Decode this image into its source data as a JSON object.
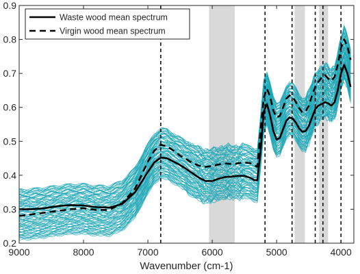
{
  "chart_data": {
    "type": "line",
    "title": "",
    "xlabel": "Wavenumber (cm-1)",
    "ylabel": "",
    "x_reversed": true,
    "xlim": [
      9000,
      3800
    ],
    "ylim": [
      0.2,
      0.9
    ],
    "x_ticks": [
      9000,
      8000,
      7000,
      6000,
      5000,
      4000
    ],
    "x_tick_labels": [
      "9000",
      "8000",
      "7000",
      "6000",
      "5000",
      "4000"
    ],
    "y_ticks": [
      0.2,
      0.3,
      0.4,
      0.5,
      0.6,
      0.7,
      0.8,
      0.9
    ],
    "y_tick_labels": [
      "0.2",
      "0.3",
      "0.4",
      "0.5",
      "0.6",
      "0.7",
      "0.8",
      "0.9"
    ],
    "grid": false,
    "legend_position": "top-left",
    "shaded_regions": [
      [
        6050,
        5650
      ],
      [
        4720,
        4560
      ],
      [
        4340,
        4200
      ]
    ],
    "vertical_dashed_lines": [
      6800,
      5180,
      4760,
      4400,
      4280,
      4000
    ],
    "sample_band": {
      "color": "#1aa7b5",
      "count": 90
    },
    "series": [
      {
        "name": "Waste wood mean spectrum",
        "style": "solid",
        "color": "#000000",
        "x": [
          9000,
          8800,
          8600,
          8400,
          8200,
          8000,
          7800,
          7600,
          7400,
          7200,
          7000,
          6900,
          6800,
          6700,
          6600,
          6500,
          6400,
          6300,
          6200,
          6100,
          6000,
          5900,
          5800,
          5700,
          5600,
          5500,
          5400,
          5350,
          5300,
          5250,
          5200,
          5150,
          5100,
          5050,
          5000,
          4950,
          4900,
          4850,
          4800,
          4750,
          4700,
          4650,
          4600,
          4550,
          4500,
          4450,
          4400,
          4350,
          4300,
          4250,
          4200,
          4150,
          4100,
          4050,
          4000,
          3950,
          3900,
          3850
        ],
        "values": [
          0.3,
          0.3,
          0.303,
          0.309,
          0.312,
          0.311,
          0.306,
          0.305,
          0.315,
          0.35,
          0.41,
          0.438,
          0.452,
          0.45,
          0.44,
          0.43,
          0.418,
          0.405,
          0.392,
          0.383,
          0.383,
          0.39,
          0.395,
          0.396,
          0.398,
          0.398,
          0.392,
          0.386,
          0.385,
          0.47,
          0.587,
          0.61,
          0.575,
          0.53,
          0.505,
          0.51,
          0.535,
          0.56,
          0.57,
          0.567,
          0.555,
          0.538,
          0.528,
          0.53,
          0.545,
          0.57,
          0.595,
          0.605,
          0.61,
          0.615,
          0.612,
          0.605,
          0.615,
          0.65,
          0.7,
          0.725,
          0.7,
          0.66
        ]
      },
      {
        "name": "Virgin wood mean spectrum",
        "style": "dashed",
        "color": "#000000",
        "x": [
          9000,
          8800,
          8600,
          8400,
          8200,
          8000,
          7800,
          7600,
          7400,
          7200,
          7000,
          6900,
          6800,
          6700,
          6600,
          6500,
          6400,
          6300,
          6200,
          6100,
          6000,
          5900,
          5800,
          5700,
          5600,
          5500,
          5400,
          5350,
          5300,
          5250,
          5200,
          5150,
          5100,
          5050,
          5000,
          4950,
          4900,
          4850,
          4800,
          4750,
          4700,
          4650,
          4600,
          4550,
          4500,
          4450,
          4400,
          4350,
          4300,
          4250,
          4200,
          4150,
          4100,
          4050,
          4000,
          3950,
          3900,
          3850
        ],
        "values": [
          0.28,
          0.285,
          0.29,
          0.295,
          0.3,
          0.303,
          0.298,
          0.298,
          0.318,
          0.36,
          0.44,
          0.472,
          0.49,
          0.485,
          0.472,
          0.458,
          0.447,
          0.435,
          0.428,
          0.425,
          0.427,
          0.432,
          0.435,
          0.433,
          0.435,
          0.438,
          0.435,
          0.43,
          0.425,
          0.53,
          0.628,
          0.655,
          0.63,
          0.59,
          0.57,
          0.575,
          0.6,
          0.625,
          0.635,
          0.63,
          0.615,
          0.598,
          0.585,
          0.588,
          0.605,
          0.635,
          0.66,
          0.675,
          0.688,
          0.695,
          0.685,
          0.678,
          0.69,
          0.725,
          0.775,
          0.8,
          0.78,
          0.74
        ]
      }
    ]
  }
}
